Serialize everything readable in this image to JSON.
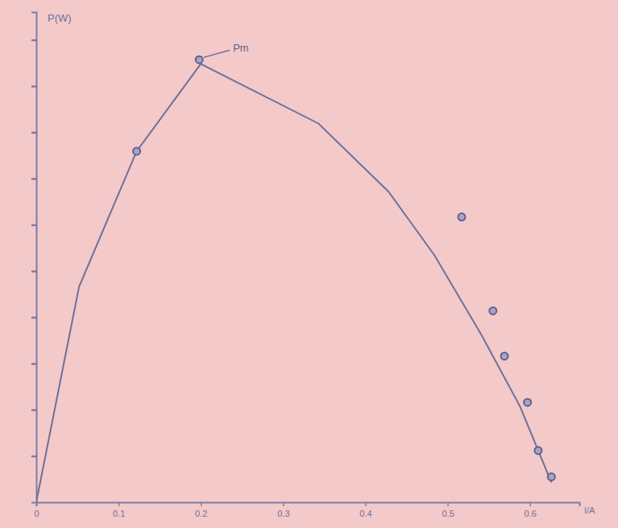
{
  "chart_data": {
    "type": "scatter",
    "y_label": "P(W)",
    "x_label": "I/A",
    "annotation": "Pm",
    "xlim": [
      0,
      0.66
    ],
    "ylim": [
      0,
      10.6
    ],
    "xticks": [
      0,
      0.1,
      0.2,
      0.3,
      0.4,
      0.5,
      0.6
    ],
    "yticks": [
      1,
      2,
      3,
      4,
      5,
      6,
      7,
      8,
      9,
      10
    ],
    "tick_labels": "x",
    "grid": false,
    "series": [
      {
        "type": "line",
        "color": "#6d7199",
        "line_style": "solid",
        "x": [
          0,
          0.052,
          0.122,
          0.2,
          0.343,
          0.428,
          0.484,
          0.541,
          0.588,
          0.626
        ],
        "values": [
          0,
          4.66,
          7.59,
          9.48,
          8.19,
          6.72,
          5.34,
          3.62,
          2.07,
          0.43
        ]
      },
      {
        "type": "scatter",
        "color": "#5d6190",
        "marker": "circle",
        "x": [
          0.122,
          0.198,
          0.517,
          0.555,
          0.569,
          0.597,
          0.61,
          0.626
        ],
        "values": [
          7.59,
          9.57,
          6.17,
          4.14,
          3.16,
          2.16,
          1.12,
          0.55
        ]
      }
    ]
  }
}
